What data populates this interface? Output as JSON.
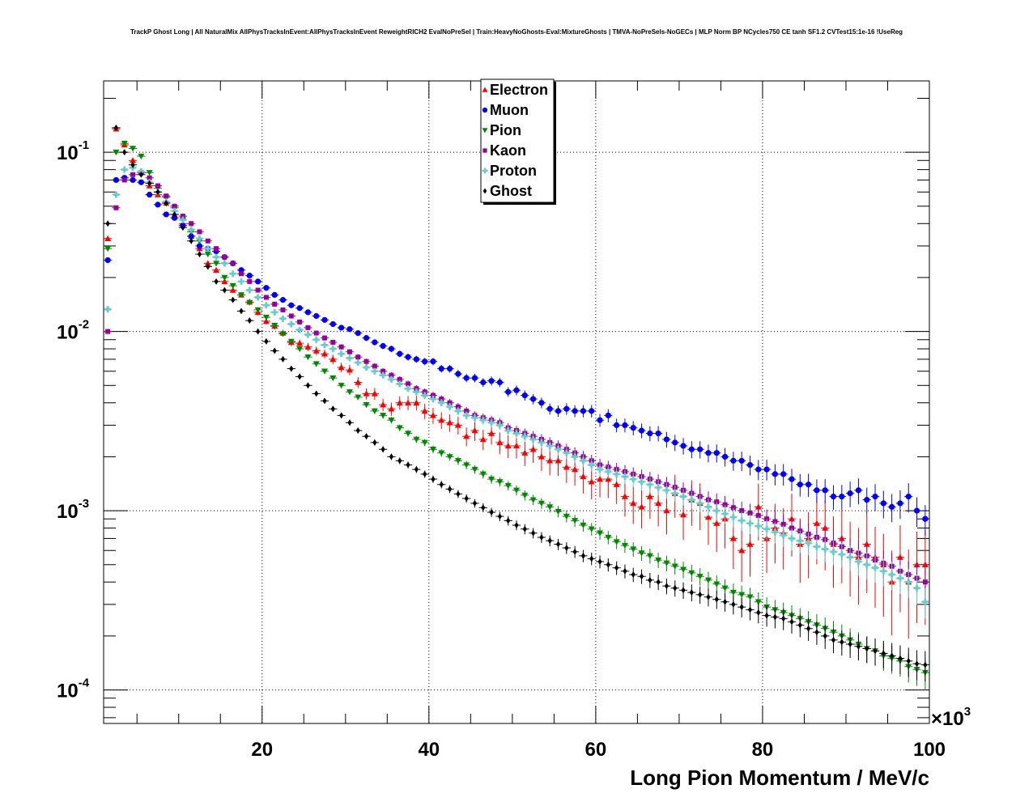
{
  "title": "TrackP Ghost Long | All NaturalMix AllPhysTracksInEvent:AllPhysTracksInEvent ReweightRICH2 EvalNoPreSel | Train:HeavyNoGhosts-Eval:MixtureGhosts | TMVA-NoPreSels-NoGECs | MLP Norm BP NCycles750 CE tanh SF1.2 CVTest15:1e-16 !UseReg",
  "chart_data": {
    "type": "scatter",
    "title": "TrackP Ghost Long | All NaturalMix AllPhysTracksInEvent:AllPhysTracksInEvent ReweightRICH2 EvalNoPreSel | Train:HeavyNoGhosts-Eval:MixtureGhosts | TMVA-NoPreSels-NoGECs | MLP Norm BP NCycles750 CE tanh SF1.2 CVTest15:1e-16 !UseReg",
    "xlabel": "Long Pion Momentum / MeV/c",
    "x_multiplier_label": "×10",
    "x_multiplier_exp": "3",
    "ylabel": "",
    "xlim": [
      1,
      100
    ],
    "ylim": [
      6.5e-05,
      0.25
    ],
    "yscale": "log",
    "grid": true,
    "legend_position": "top-center",
    "x_tick_labels": [
      "20",
      "40",
      "60",
      "80",
      "100"
    ],
    "y_tick_labels": [
      {
        "base": "10",
        "exp": "-1"
      },
      {
        "base": "10",
        "exp": "-2"
      },
      {
        "base": "10",
        "exp": "-3"
      },
      {
        "base": "10",
        "exp": "-4"
      }
    ],
    "bin_width": 1,
    "x_start": 1.5,
    "series": [
      {
        "name": "Electron",
        "color": "#ff0000",
        "marker": "triangle-up",
        "values": [
          0.033,
          0.135,
          0.11,
          0.09,
          0.078,
          0.065,
          0.058,
          0.052,
          0.045,
          0.04,
          0.034,
          0.029,
          0.024,
          0.022,
          0.019,
          0.017,
          0.016,
          0.0146,
          0.0128,
          0.0114,
          0.0107,
          0.0098,
          0.0087,
          0.0086,
          0.0082,
          0.0078,
          0.0075,
          0.007,
          0.0063,
          0.0061,
          0.0052,
          0.0045,
          0.0045,
          0.0039,
          0.0037,
          0.004,
          0.004,
          0.004,
          0.0036,
          0.0034,
          0.0032,
          0.0031,
          0.003,
          0.0026,
          0.0028,
          0.0025,
          0.0027,
          0.0024,
          0.0023,
          0.0023,
          0.0021,
          0.0022,
          0.002,
          0.0019,
          0.0019,
          0.00175,
          0.0017,
          0.00155,
          0.00145,
          0.0015,
          0.0015,
          0.0014,
          0.0012,
          0.0011,
          0.00105,
          0.0012,
          0.0011,
          0.001,
          0.00125,
          0.00095,
          0.00115,
          0.0011,
          0.00092,
          0.00085,
          0.0009,
          0.0007,
          0.0006,
          0.00065,
          0.00105,
          0.0007,
          0.0008,
          0.00075,
          0.0009,
          0.00065,
          0.0007,
          0.00085,
          0.0008,
          0.00065,
          0.0007,
          0.0006,
          0.00055,
          0.00065,
          0.00055,
          0.0005,
          0.0004,
          0.00055,
          0.0004,
          0.0005,
          0.0005,
          0.0004
        ]
      },
      {
        "name": "Muon",
        "color": "#0000ff",
        "marker": "circle",
        "values": [
          0.025,
          0.07,
          0.072,
          0.07,
          0.068,
          0.058,
          0.051,
          0.045,
          0.043,
          0.039,
          0.034,
          0.03,
          0.029,
          0.028,
          0.026,
          0.024,
          0.022,
          0.0205,
          0.019,
          0.0175,
          0.016,
          0.015,
          0.014,
          0.0135,
          0.0128,
          0.0122,
          0.0116,
          0.011,
          0.0105,
          0.0103,
          0.0098,
          0.0092,
          0.0087,
          0.0083,
          0.008,
          0.0075,
          0.0072,
          0.007,
          0.0068,
          0.0068,
          0.0062,
          0.0062,
          0.0058,
          0.0055,
          0.0055,
          0.0052,
          0.0053,
          0.0052,
          0.0046,
          0.0047,
          0.0044,
          0.0042,
          0.004,
          0.0037,
          0.0036,
          0.0037,
          0.0036,
          0.0036,
          0.0036,
          0.0032,
          0.0034,
          0.003,
          0.003,
          0.0029,
          0.0028,
          0.0027,
          0.0027,
          0.0025,
          0.0024,
          0.0023,
          0.0022,
          0.0022,
          0.0021,
          0.0021,
          0.002,
          0.0019,
          0.0019,
          0.0018,
          0.0017,
          0.0017,
          0.0016,
          0.0016,
          0.0015,
          0.0014,
          0.0014,
          0.0013,
          0.0013,
          0.0012,
          0.0012,
          0.00125,
          0.0013,
          0.00115,
          0.0012,
          0.0011,
          0.00105,
          0.0011,
          0.0012,
          0.001,
          0.0009,
          0.0011
        ]
      },
      {
        "name": "Pion",
        "color": "#008800",
        "marker": "triangle-down",
        "values": [
          0.029,
          0.1,
          0.112,
          0.105,
          0.095,
          0.077,
          0.063,
          0.056,
          0.049,
          0.042,
          0.036,
          0.032,
          0.027,
          0.024,
          0.02,
          0.018,
          0.016,
          0.0145,
          0.0132,
          0.012,
          0.0108,
          0.0097,
          0.0088,
          0.008,
          0.0072,
          0.0066,
          0.006,
          0.0055,
          0.005,
          0.0046,
          0.0043,
          0.0039,
          0.0036,
          0.0034,
          0.0032,
          0.0029,
          0.0027,
          0.0025,
          0.0024,
          0.0022,
          0.0021,
          0.002,
          0.0019,
          0.0018,
          0.0017,
          0.0016,
          0.0015,
          0.00145,
          0.00138,
          0.0013,
          0.00122,
          0.00115,
          0.0011,
          0.00105,
          0.00099,
          0.00093,
          0.00088,
          0.00083,
          0.00079,
          0.00075,
          0.00071,
          0.00067,
          0.00064,
          0.00061,
          0.00058,
          0.00056,
          0.00053,
          0.00051,
          0.00049,
          0.00047,
          0.00045,
          0.00043,
          0.00041,
          0.00039,
          0.00037,
          0.00035,
          0.00034,
          0.00033,
          0.00031,
          0.00029,
          0.00028,
          0.00027,
          0.00026,
          0.00025,
          0.00024,
          0.00023,
          0.00022,
          0.00021,
          0.0002,
          0.00019,
          0.00018,
          0.00017,
          0.000165,
          0.000155,
          0.00015,
          0.000145,
          0.000135,
          0.00013,
          0.000125,
          0.000105
        ]
      },
      {
        "name": "Kaon",
        "color": "#990099",
        "marker": "square",
        "values": [
          0.01,
          0.049,
          0.07,
          0.075,
          0.077,
          0.072,
          0.065,
          0.057,
          0.05,
          0.044,
          0.04,
          0.036,
          0.032,
          0.029,
          0.026,
          0.024,
          0.021,
          0.019,
          0.017,
          0.0155,
          0.0142,
          0.0132,
          0.0122,
          0.0113,
          0.0105,
          0.0098,
          0.0092,
          0.0087,
          0.0082,
          0.0077,
          0.0072,
          0.0068,
          0.0064,
          0.006,
          0.0057,
          0.0054,
          0.0051,
          0.0048,
          0.0046,
          0.0044,
          0.0042,
          0.004,
          0.0038,
          0.0036,
          0.0034,
          0.0033,
          0.0032,
          0.0031,
          0.0029,
          0.0028,
          0.0027,
          0.0026,
          0.0025,
          0.0024,
          0.0023,
          0.0022,
          0.0021,
          0.002,
          0.0019,
          0.0018,
          0.00175,
          0.0017,
          0.00165,
          0.0016,
          0.00155,
          0.0015,
          0.00145,
          0.0014,
          0.00135,
          0.0013,
          0.00125,
          0.0012,
          0.00115,
          0.00112,
          0.00108,
          0.00104,
          0.001,
          0.00097,
          0.00094,
          0.0009,
          0.00087,
          0.00084,
          0.0008,
          0.00077,
          0.00074,
          0.00071,
          0.00069,
          0.00066,
          0.00063,
          0.0006,
          0.00058,
          0.00056,
          0.00053,
          0.00051,
          0.00049,
          0.00046,
          0.00044,
          0.00042,
          0.0004,
          0.00032
        ]
      },
      {
        "name": "Proton",
        "color": "#66cccc",
        "marker": "cross",
        "values": [
          0.0133,
          0.058,
          0.08,
          0.082,
          0.078,
          0.068,
          0.06,
          0.053,
          0.047,
          0.042,
          0.037,
          0.033,
          0.029,
          0.026,
          0.024,
          0.021,
          0.019,
          0.017,
          0.0155,
          0.014,
          0.0128,
          0.0118,
          0.011,
          0.0102,
          0.0096,
          0.009,
          0.0084,
          0.008,
          0.0075,
          0.0071,
          0.0067,
          0.0063,
          0.006,
          0.0057,
          0.0054,
          0.0051,
          0.0048,
          0.0046,
          0.0044,
          0.0042,
          0.004,
          0.0038,
          0.0036,
          0.0034,
          0.0033,
          0.0032,
          0.0031,
          0.003,
          0.0028,
          0.0027,
          0.0026,
          0.0025,
          0.0024,
          0.0023,
          0.0022,
          0.0021,
          0.002,
          0.0019,
          0.0018,
          0.0017,
          0.00165,
          0.0016,
          0.00155,
          0.0015,
          0.00145,
          0.0014,
          0.00135,
          0.0013,
          0.00125,
          0.0012,
          0.00115,
          0.0011,
          0.00105,
          0.001,
          0.00096,
          0.00092,
          0.00088,
          0.00085,
          0.00082,
          0.00079,
          0.00076,
          0.00073,
          0.0007,
          0.00068,
          0.00066,
          0.00063,
          0.00061,
          0.00059,
          0.00057,
          0.00055,
          0.00052,
          0.0005,
          0.00048,
          0.00046,
          0.00044,
          0.00042,
          0.0004,
          0.00037,
          0.00031,
          0.00026
        ]
      },
      {
        "name": "Ghost",
        "color": "#000000",
        "marker": "diamond",
        "values": [
          0.04,
          0.137,
          0.1,
          0.085,
          0.075,
          0.067,
          0.06,
          0.052,
          0.045,
          0.038,
          0.032,
          0.027,
          0.023,
          0.019,
          0.017,
          0.015,
          0.013,
          0.0115,
          0.01,
          0.0088,
          0.0078,
          0.007,
          0.0062,
          0.0056,
          0.005,
          0.0045,
          0.0041,
          0.0037,
          0.0034,
          0.0031,
          0.0028,
          0.0026,
          0.0024,
          0.0022,
          0.002,
          0.0019,
          0.0018,
          0.0017,
          0.0016,
          0.0015,
          0.0014,
          0.00132,
          0.00124,
          0.00117,
          0.0011,
          0.00104,
          0.00098,
          0.00093,
          0.00088,
          0.00083,
          0.00079,
          0.00075,
          0.00071,
          0.00068,
          0.00065,
          0.00062,
          0.00059,
          0.00056,
          0.00054,
          0.00052,
          0.0005,
          0.00048,
          0.00046,
          0.00044,
          0.00043,
          0.00041,
          0.0004,
          0.00038,
          0.00037,
          0.00036,
          0.00035,
          0.00034,
          0.00033,
          0.00032,
          0.00031,
          0.0003,
          0.00029,
          0.00028,
          0.00027,
          0.00026,
          0.000255,
          0.00025,
          0.00024,
          0.00023,
          0.00022,
          0.00021,
          0.0002,
          0.00019,
          0.000185,
          0.00018,
          0.000175,
          0.00017,
          0.000165,
          0.00016,
          0.000155,
          0.00015,
          0.000145,
          0.00014,
          0.000138,
          0.000135
        ]
      }
    ]
  }
}
